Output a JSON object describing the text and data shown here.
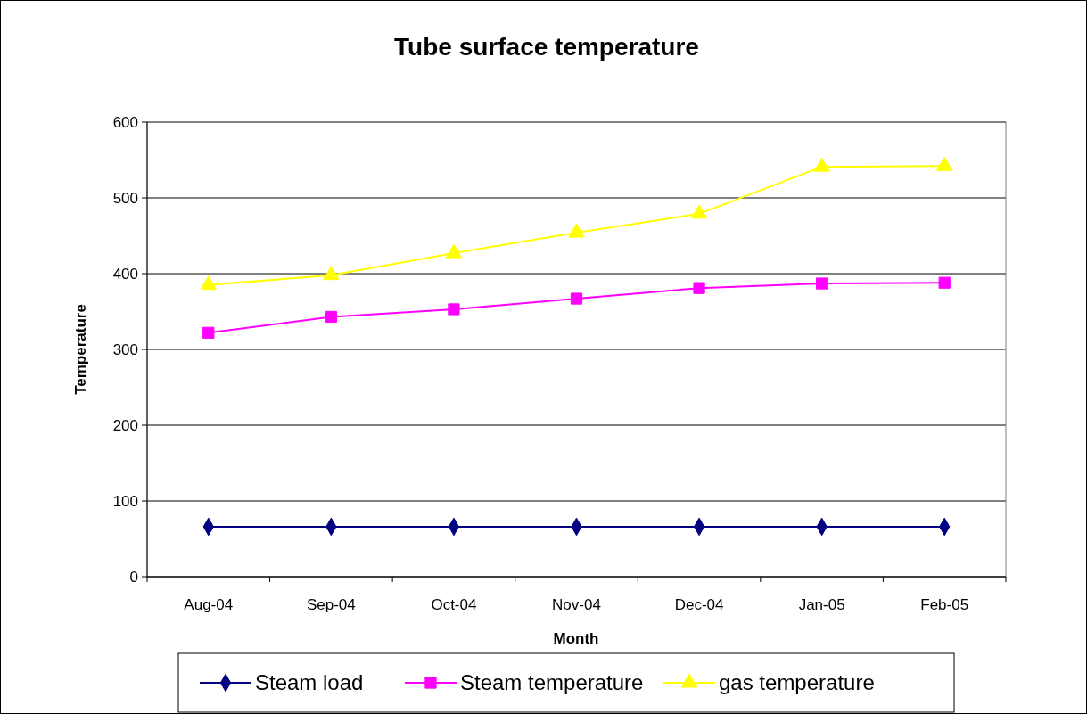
{
  "chart_data": {
    "type": "line",
    "title": "Tube surface temperature",
    "xlabel": "Month",
    "ylabel": "Temperature",
    "categories": [
      "Aug-04",
      "Sep-04",
      "Oct-04",
      "Nov-04",
      "Dec-04",
      "Jan-05",
      "Feb-05"
    ],
    "series": [
      {
        "name": "Steam load",
        "color": "#000080",
        "marker": "diamond",
        "values": [
          66,
          66,
          66,
          66,
          66,
          66,
          66
        ]
      },
      {
        "name": "Steam temperature",
        "color": "#ff00ff",
        "marker": "square",
        "values": [
          322,
          343,
          353,
          367,
          381,
          387,
          388
        ]
      },
      {
        "name": "gas temperature",
        "color": "#ffff00",
        "marker": "triangle",
        "values": [
          385,
          398,
          427,
          454,
          479,
          541,
          542
        ]
      }
    ],
    "ylim": [
      0,
      600
    ],
    "yticks": [
      0,
      100,
      200,
      300,
      400,
      500,
      600
    ],
    "grid": "y",
    "legend": "bottom"
  }
}
